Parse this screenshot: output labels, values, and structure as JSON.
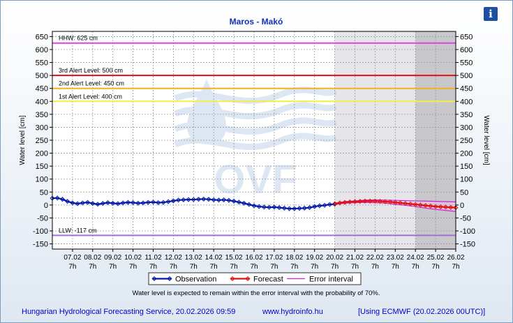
{
  "info_icon": "info-icon",
  "chart_data": {
    "type": "line",
    "title": "Maros - Makó",
    "ylabel": "Water level [cm]",
    "ylabel_right": "Water level [cm]",
    "ylim": [
      -170,
      670
    ],
    "yticks": [
      650,
      600,
      550,
      500,
      450,
      400,
      350,
      300,
      250,
      200,
      150,
      100,
      50,
      0,
      -50,
      -100,
      -150
    ],
    "date_ticks": [
      "07.02",
      "08.02",
      "09.02",
      "10.02",
      "11.02",
      "12.02",
      "13.02",
      "14.02",
      "15.02",
      "16.02",
      "17.02",
      "18.02",
      "19.02",
      "20.02",
      "21.02",
      "22.02",
      "23.02",
      "24.02",
      "25.02",
      "26.02"
    ],
    "hour_label": "7h",
    "grid": true,
    "thresholds": [
      {
        "label": "HHW: 625 cm",
        "value": 625,
        "color": "#e040e0"
      },
      {
        "label": "3rd Alert Level: 500 cm",
        "value": 500,
        "color": "#e01010"
      },
      {
        "label": "2nd Alert Level: 450 cm",
        "value": 450,
        "color": "#f5b020"
      },
      {
        "label": "1st Alert Level: 400 cm",
        "value": 400,
        "color": "#f0f040"
      },
      {
        "label": "LLW: -117 cm",
        "value": -117,
        "color": "#a070d0"
      }
    ],
    "series": [
      {
        "name": "Observation",
        "color": "#0018a8",
        "x": [
          6.0,
          6.25,
          6.5,
          6.75,
          7.0,
          7.25,
          7.5,
          7.75,
          8.0,
          8.25,
          8.5,
          8.75,
          9.0,
          9.25,
          9.5,
          9.75,
          10.0,
          10.25,
          10.5,
          10.75,
          11.0,
          11.25,
          11.5,
          11.75,
          12.0,
          12.25,
          12.5,
          12.75,
          13.0,
          13.25,
          13.5,
          13.75,
          14.0,
          14.25,
          14.5,
          14.75,
          15.0,
          15.25,
          15.5,
          15.75,
          16.0,
          16.25,
          16.5,
          16.75,
          17.0,
          17.25,
          17.5,
          17.75,
          18.0,
          18.25,
          18.5,
          18.75,
          19.0,
          19.25,
          19.5,
          19.75,
          20.0
        ],
        "values": [
          26,
          27,
          22,
          14,
          8,
          5,
          8,
          10,
          6,
          3,
          6,
          9,
          7,
          5,
          8,
          10,
          9,
          7,
          8,
          10,
          11,
          9,
          10,
          13,
          16,
          19,
          20,
          21,
          21,
          22,
          23,
          22,
          20,
          19,
          20,
          18,
          15,
          11,
          7,
          2,
          -3,
          -6,
          -8,
          -9,
          -8,
          -10,
          -12,
          -14,
          -14,
          -13,
          -12,
          -10,
          -6,
          -3,
          -1,
          2,
          3
        ]
      },
      {
        "name": "Forecast",
        "color": "#e01010",
        "x": [
          20.0,
          20.25,
          20.5,
          20.75,
          21.0,
          21.25,
          21.5,
          21.75,
          22.0,
          22.25,
          22.5,
          22.75,
          23.0,
          23.25,
          23.5,
          23.75,
          24.0,
          24.25,
          24.5,
          24.75,
          25.0,
          25.25,
          25.5,
          25.75,
          26.0
        ],
        "values": [
          5,
          8,
          10,
          12,
          13,
          14,
          15,
          15,
          15,
          14,
          13,
          12,
          10,
          8,
          6,
          4,
          2,
          0,
          -2,
          -4,
          -6,
          -7,
          -8,
          -9,
          -10
        ]
      }
    ],
    "error_interval": {
      "name": "Error interval",
      "color": "#d020d0",
      "x": [
        20.0,
        20.5,
        21.0,
        21.5,
        22.0,
        22.5,
        23.0,
        23.5,
        24.0,
        24.5,
        25.0,
        25.5,
        26.0
      ],
      "upper": [
        7,
        13,
        16,
        19,
        20,
        19,
        18,
        17,
        16,
        15,
        14,
        13,
        12
      ],
      "lower": [
        3,
        7,
        9,
        10,
        9,
        7,
        3,
        -1,
        -6,
        -12,
        -17,
        -21,
        -25
      ]
    },
    "shaded_ranges": [
      {
        "from": 20.0,
        "to": 24.0,
        "color": "#e6e6ea"
      },
      {
        "from": 24.0,
        "to": 26.0,
        "color": "#c8c8cc"
      }
    ],
    "watermark": "OVF",
    "note": "Water level is expected to remain within the error interval with the probability of 70%."
  },
  "footer": {
    "left": "Hungarian Hydrological Forecasting Service, 20.02.2026 09:59",
    "center": "www.hydroinfo.hu",
    "right": "[Using ECMWF (20.02.2026  00UTC)]"
  }
}
